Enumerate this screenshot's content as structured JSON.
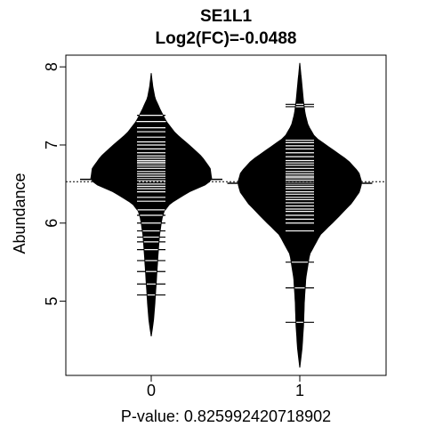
{
  "chart_data": {
    "type": "violin",
    "title": "SE1L1",
    "subtitle": "Log2(FC)=-0.0488",
    "xlabel": "P-value: 0.825992420718902",
    "ylabel": "Abundance",
    "categories": [
      "0",
      "1"
    ],
    "ylim": [
      4.05,
      8.15
    ],
    "yticks": [
      5,
      6,
      7,
      8
    ],
    "grid": false,
    "legend": "none",
    "overall_mean": 6.53,
    "series": [
      {
        "category": "0",
        "mean": 6.56,
        "density": [
          [
            4.55,
            0.0
          ],
          [
            4.75,
            0.03
          ],
          [
            5.0,
            0.05
          ],
          [
            5.3,
            0.07
          ],
          [
            5.6,
            0.09
          ],
          [
            5.85,
            0.11
          ],
          [
            6.05,
            0.14
          ],
          [
            6.15,
            0.17
          ],
          [
            6.25,
            0.25
          ],
          [
            6.4,
            0.5
          ],
          [
            6.5,
            0.74
          ],
          [
            6.56,
            0.8
          ],
          [
            6.7,
            0.78
          ],
          [
            6.85,
            0.67
          ],
          [
            7.0,
            0.5
          ],
          [
            7.15,
            0.32
          ],
          [
            7.3,
            0.2
          ],
          [
            7.45,
            0.12
          ],
          [
            7.6,
            0.05
          ],
          [
            7.75,
            0.02
          ],
          [
            7.92,
            0.0
          ]
        ],
        "points": [
          5.08,
          5.22,
          5.38,
          5.52,
          5.66,
          5.76,
          5.82,
          5.9,
          6.0,
          6.1,
          6.17,
          6.28,
          6.33,
          6.4,
          6.44,
          6.47,
          6.5,
          6.53,
          6.55,
          6.57,
          6.6,
          6.63,
          6.66,
          6.7,
          6.73,
          6.76,
          6.78,
          6.8,
          6.83,
          6.86,
          6.9,
          6.95,
          7.0,
          7.04,
          7.1,
          7.17,
          7.22,
          7.3,
          7.38
        ]
      },
      {
        "category": "1",
        "mean": 6.51,
        "density": [
          [
            4.15,
            0.0
          ],
          [
            4.4,
            0.03
          ],
          [
            4.7,
            0.05
          ],
          [
            5.0,
            0.06
          ],
          [
            5.3,
            0.08
          ],
          [
            5.6,
            0.13
          ],
          [
            5.85,
            0.27
          ],
          [
            6.05,
            0.48
          ],
          [
            6.25,
            0.68
          ],
          [
            6.4,
            0.79
          ],
          [
            6.52,
            0.82
          ],
          [
            6.65,
            0.78
          ],
          [
            6.8,
            0.64
          ],
          [
            6.95,
            0.42
          ],
          [
            7.1,
            0.2
          ],
          [
            7.25,
            0.11
          ],
          [
            7.4,
            0.07
          ],
          [
            7.55,
            0.05
          ],
          [
            7.75,
            0.03
          ],
          [
            8.05,
            0.0
          ]
        ],
        "points": [
          4.73,
          5.17,
          5.5,
          5.9,
          6.0,
          6.05,
          6.1,
          6.15,
          6.18,
          6.22,
          6.26,
          6.3,
          6.33,
          6.37,
          6.4,
          6.44,
          6.47,
          6.5,
          6.52,
          6.55,
          6.58,
          6.6,
          6.63,
          6.66,
          6.7,
          6.74,
          6.77,
          6.8,
          6.85,
          6.9,
          6.95,
          6.99,
          7.03,
          7.06,
          7.49,
          7.52
        ]
      }
    ]
  }
}
